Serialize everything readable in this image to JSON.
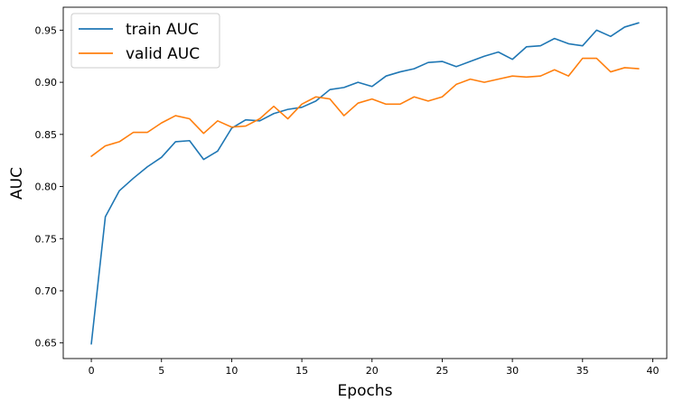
{
  "chart_data": {
    "type": "line",
    "xlabel": "Epochs",
    "ylabel": "AUC",
    "xlim": [
      -2,
      41
    ],
    "ylim": [
      0.635,
      0.972
    ],
    "xticks": [
      0,
      5,
      10,
      15,
      20,
      25,
      30,
      35,
      40
    ],
    "yticks": [
      0.65,
      0.7,
      0.75,
      0.8,
      0.85,
      0.9,
      0.95
    ],
    "ytick_labels": [
      "0.65",
      "0.70",
      "0.75",
      "0.80",
      "0.85",
      "0.90",
      "0.95"
    ],
    "xtick_labels": [
      "0",
      "5",
      "10",
      "15",
      "20",
      "25",
      "30",
      "35",
      "40"
    ],
    "grid": false,
    "legend_position": "top-left",
    "x": [
      0,
      1,
      2,
      3,
      4,
      5,
      6,
      7,
      8,
      9,
      10,
      11,
      12,
      13,
      14,
      15,
      16,
      17,
      18,
      19,
      20,
      21,
      22,
      23,
      24,
      25,
      26,
      27,
      28,
      29,
      30,
      31,
      32,
      33,
      34,
      35,
      36,
      37,
      38,
      39
    ],
    "series": [
      {
        "name": "train AUC",
        "color": "#1f77b4",
        "values": [
          0.649,
          0.771,
          0.796,
          0.808,
          0.819,
          0.828,
          0.843,
          0.844,
          0.826,
          0.834,
          0.856,
          0.864,
          0.863,
          0.87,
          0.874,
          0.876,
          0.882,
          0.893,
          0.895,
          0.9,
          0.896,
          0.906,
          0.91,
          0.913,
          0.919,
          0.92,
          0.915,
          0.92,
          0.925,
          0.929,
          0.922,
          0.934,
          0.935,
          0.942,
          0.937,
          0.935,
          0.95,
          0.944,
          0.953,
          0.957
        ]
      },
      {
        "name": "valid AUC",
        "color": "#ff7f0e",
        "values": [
          0.829,
          0.839,
          0.843,
          0.852,
          0.852,
          0.861,
          0.868,
          0.865,
          0.851,
          0.863,
          0.857,
          0.858,
          0.865,
          0.877,
          0.865,
          0.879,
          0.886,
          0.884,
          0.868,
          0.88,
          0.884,
          0.879,
          0.879,
          0.886,
          0.882,
          0.886,
          0.898,
          0.903,
          0.9,
          0.903,
          0.906,
          0.905,
          0.906,
          0.912,
          0.906,
          0.923,
          0.923,
          0.91,
          0.914,
          0.913
        ]
      }
    ]
  }
}
